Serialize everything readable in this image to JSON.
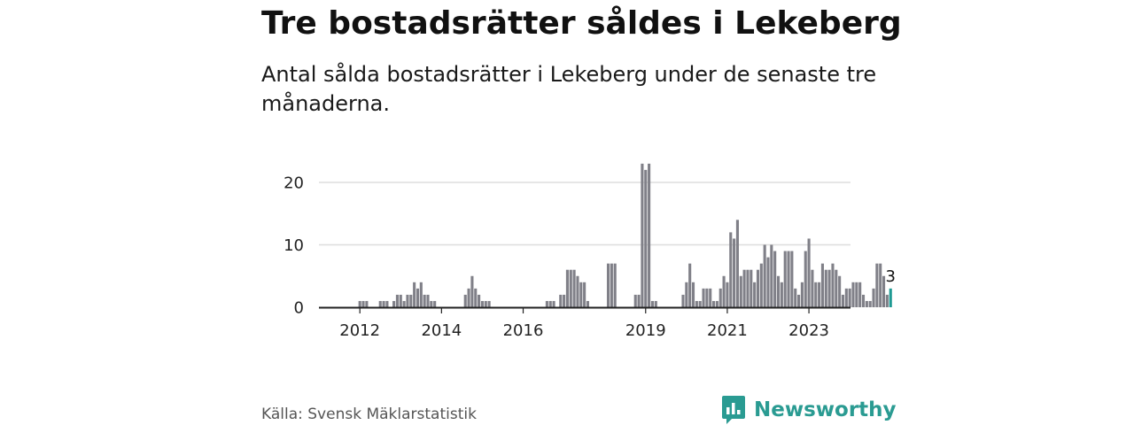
{
  "title": "Tre bostadsrätter såldes i Lekeberg",
  "subtitle": "Antal sålda bostadsrätter i Lekeberg under de senaste tre månaderna.",
  "source": "Källa: Svensk Mäklarstatistik",
  "brand": {
    "name": "Newsworthy",
    "icon": "newsworthy-logo-icon",
    "color": "#2a9b92"
  },
  "colors": {
    "bars": "#808088",
    "highlight": "#1f9a93",
    "grid": "#dddddd",
    "axis": "#222222"
  },
  "chart_data": {
    "type": "bar",
    "start": "2011-08",
    "x_tick_labels": [
      "2012",
      "2014",
      "2016",
      "2019",
      "2021",
      "2023"
    ],
    "x_tick_positions": [
      "2012-01",
      "2014-01",
      "2016-01",
      "2019-01",
      "2021-01",
      "2023-01"
    ],
    "y_ticks": [
      0,
      10,
      20
    ],
    "ylim": [
      0,
      24
    ],
    "grid": true,
    "values": [
      0,
      0,
      0,
      0,
      0,
      1,
      1,
      1,
      0,
      0,
      0,
      1,
      1,
      1,
      0,
      1,
      2,
      2,
      1,
      2,
      2,
      4,
      3,
      4,
      2,
      2,
      1,
      1,
      0,
      0,
      0,
      0,
      0,
      0,
      0,
      0,
      2,
      3,
      5,
      3,
      2,
      1,
      1,
      1,
      0,
      0,
      0,
      0,
      0,
      0,
      0,
      0,
      0,
      0,
      0,
      0,
      0,
      0,
      0,
      0,
      1,
      1,
      1,
      0,
      2,
      2,
      6,
      6,
      6,
      5,
      4,
      4,
      1,
      0,
      0,
      0,
      0,
      0,
      7,
      7,
      7,
      0,
      0,
      0,
      0,
      0,
      2,
      2,
      23,
      22,
      23,
      1,
      1,
      0,
      0,
      0,
      0,
      0,
      0,
      0,
      2,
      4,
      7,
      4,
      1,
      1,
      3,
      3,
      3,
      1,
      1,
      3,
      5,
      4,
      12,
      11,
      14,
      5,
      6,
      6,
      6,
      4,
      6,
      7,
      10,
      8,
      10,
      9,
      5,
      4,
      9,
      9,
      9,
      3,
      2,
      4,
      9,
      11,
      6,
      4,
      4,
      7,
      6,
      6,
      7,
      6,
      5,
      2,
      3,
      3,
      4,
      4,
      4,
      2,
      1,
      1,
      3,
      7,
      7,
      5,
      2,
      3
    ],
    "highlight_last": 1,
    "last_value_label": "3"
  }
}
